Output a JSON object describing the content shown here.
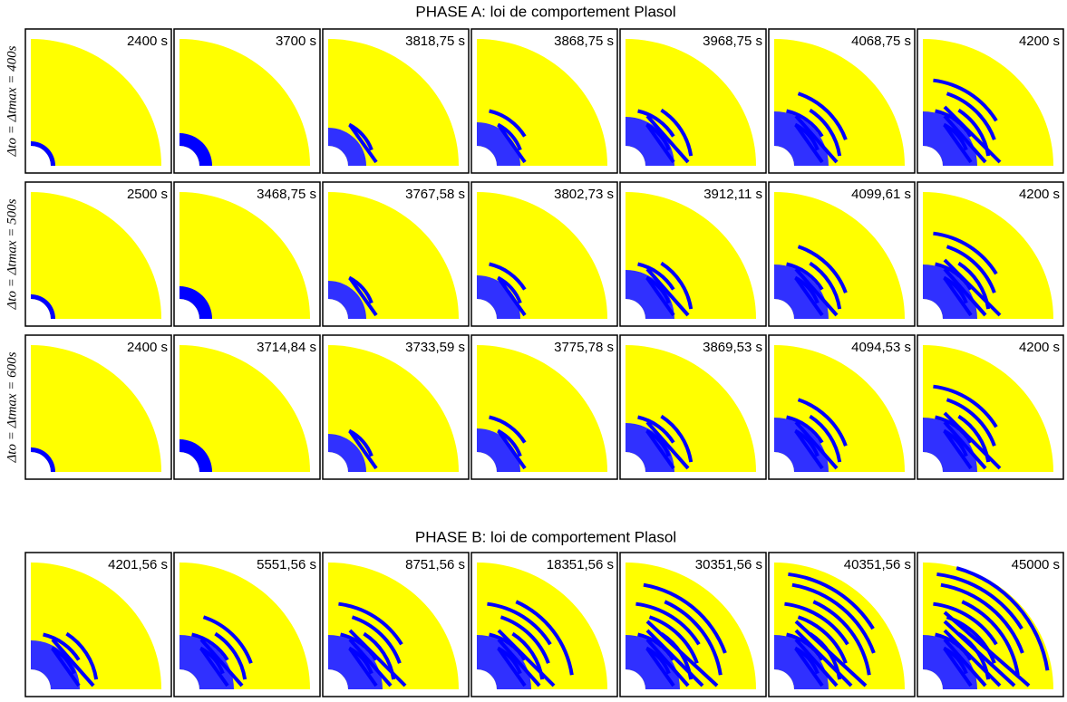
{
  "phase_a": {
    "title": "PHASE A: loi de comportement Plasol",
    "rows": [
      {
        "label": "Δto = Δtmax = 400s",
        "times": [
          "2400 s",
          "3700 s",
          "3818,75 s",
          "3868,75 s",
          "3968,75 s",
          "4068,75 s",
          "4200 s"
        ]
      },
      {
        "label": "Δto = Δtmax = 500s",
        "times": [
          "2500 s",
          "3468,75 s",
          "3767,58 s",
          "3802,73 s",
          "3912,11 s",
          "4099,61 s",
          "4200 s"
        ]
      },
      {
        "label": "Δto = Δtmax = 600s",
        "times": [
          "2400 s",
          "3714,84 s",
          "3733,59 s",
          "3775,78 s",
          "3869,53 s",
          "4094,53 s",
          "4200 s"
        ]
      }
    ]
  },
  "phase_b": {
    "title": "PHASE B: loi de comportement Plasol",
    "times": [
      "4201,56 s",
      "5551,56 s",
      "8751,56 s",
      "18351,56 s",
      "30351,56 s",
      "40351,56 s",
      "45000 s"
    ]
  }
}
